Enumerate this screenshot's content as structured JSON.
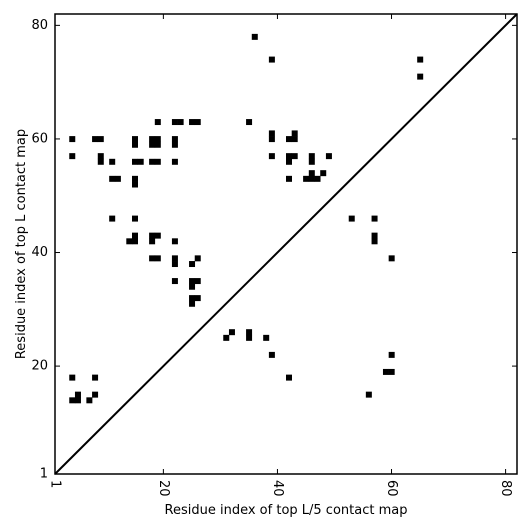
{
  "chart_data": {
    "type": "heatmap",
    "title": "",
    "xlabel": "Residue index of top L/5 contact map",
    "ylabel": "Residue index of top L contact map",
    "xlim": [
      1,
      82
    ],
    "ylim": [
      1,
      82
    ],
    "x_ticks": [
      1,
      20,
      40,
      60,
      80
    ],
    "y_ticks": [
      1,
      20,
      40,
      60,
      80
    ],
    "x_tick_labels": [
      "1",
      "20",
      "40",
      "60",
      "80"
    ],
    "y_tick_labels": [
      "1",
      "20",
      "40",
      "60",
      "80"
    ],
    "x_tick_rotation": -90,
    "grid": false,
    "diagonal": true,
    "cell_color": "#000000",
    "contacts_upper": [
      [
        36,
        78
      ],
      [
        39,
        74
      ],
      [
        65,
        74
      ],
      [
        65,
        71
      ],
      [
        4,
        60
      ],
      [
        4,
        57
      ],
      [
        8,
        60
      ],
      [
        9,
        60
      ],
      [
        9,
        56
      ],
      [
        9,
        57
      ],
      [
        11,
        56
      ],
      [
        11,
        53
      ],
      [
        12,
        53
      ],
      [
        15,
        59
      ],
      [
        15,
        60
      ],
      [
        15,
        56
      ],
      [
        16,
        56
      ],
      [
        15,
        53
      ],
      [
        15,
        52
      ],
      [
        18,
        59
      ],
      [
        18,
        60
      ],
      [
        19,
        59
      ],
      [
        19,
        60
      ],
      [
        18,
        56
      ],
      [
        19,
        56
      ],
      [
        19,
        63
      ],
      [
        22,
        63
      ],
      [
        23,
        63
      ],
      [
        22,
        59
      ],
      [
        22,
        60
      ],
      [
        22,
        56
      ],
      [
        25,
        63
      ],
      [
        26,
        63
      ],
      [
        35,
        63
      ],
      [
        39,
        60
      ],
      [
        39,
        61
      ],
      [
        39,
        57
      ],
      [
        42,
        60
      ],
      [
        43,
        60
      ],
      [
        43,
        61
      ],
      [
        42,
        57
      ],
      [
        42,
        56
      ],
      [
        43,
        57
      ],
      [
        42,
        53
      ],
      [
        46,
        56
      ],
      [
        46,
        57
      ],
      [
        46,
        54
      ],
      [
        45,
        53
      ],
      [
        46,
        53
      ],
      [
        47,
        53
      ],
      [
        48,
        54
      ],
      [
        49,
        57
      ],
      [
        11,
        46
      ],
      [
        15,
        46
      ],
      [
        14,
        42
      ],
      [
        15,
        42
      ],
      [
        15,
        43
      ],
      [
        18,
        42
      ],
      [
        18,
        43
      ],
      [
        19,
        43
      ],
      [
        22,
        42
      ],
      [
        18,
        39
      ],
      [
        19,
        39
      ],
      [
        22,
        38
      ],
      [
        22,
        39
      ],
      [
        25,
        38
      ],
      [
        26,
        39
      ],
      [
        22,
        35
      ],
      [
        25,
        34
      ],
      [
        25,
        35
      ],
      [
        26,
        35
      ],
      [
        25,
        31
      ],
      [
        25,
        32
      ],
      [
        26,
        32
      ],
      [
        53,
        46
      ],
      [
        57,
        46
      ],
      [
        57,
        43
      ],
      [
        57,
        42
      ],
      [
        60,
        39
      ]
    ],
    "contacts_lower": [
      [
        31,
        25
      ],
      [
        32,
        26
      ],
      [
        35,
        25
      ],
      [
        35,
        26
      ],
      [
        38,
        25
      ],
      [
        39,
        22
      ],
      [
        42,
        18
      ],
      [
        60,
        22
      ],
      [
        59,
        19
      ],
      [
        60,
        19
      ],
      [
        56,
        15
      ],
      [
        4,
        18
      ],
      [
        4,
        14
      ],
      [
        5,
        14
      ],
      [
        5,
        15
      ],
      [
        7,
        14
      ],
      [
        8,
        15
      ],
      [
        8,
        18
      ]
    ]
  }
}
